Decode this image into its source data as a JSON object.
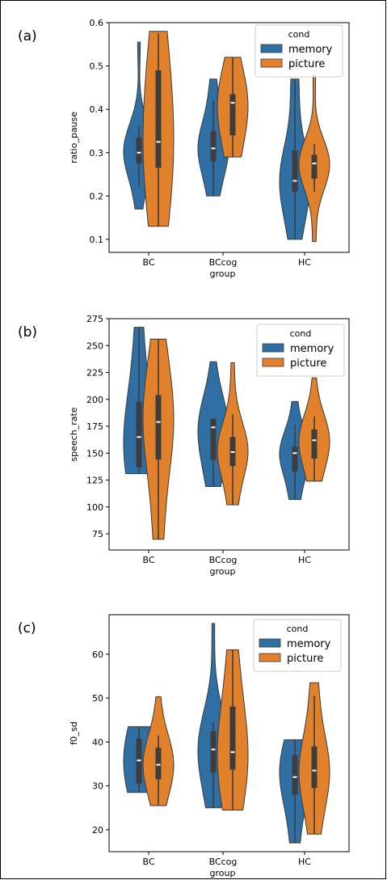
{
  "chart_data": [
    {
      "type": "violin",
      "panel_label": "(a)",
      "xlabel": "group",
      "ylabel": "ratio_pause",
      "categories": [
        "BC",
        "BCcog",
        "HC"
      ],
      "yticks": [
        0.1,
        0.2,
        0.3,
        0.4,
        0.5,
        0.6
      ],
      "ylim": [
        0.07,
        0.6
      ],
      "legend": {
        "title": "cond",
        "placement": "top-right",
        "entries": [
          "memory",
          "picture"
        ]
      },
      "series": [
        {
          "name": "memory",
          "color": "#2f6fa3",
          "groups": [
            {
              "min": 0.17,
              "q1": 0.275,
              "median": 0.3,
              "q3": 0.335,
              "whisker_low": 0.22,
              "whisker_high": 0.36,
              "max": 0.555
            },
            {
              "min": 0.2,
              "q1": 0.28,
              "median": 0.31,
              "q3": 0.35,
              "whisker_low": 0.2,
              "whisker_high": 0.42,
              "max": 0.47
            },
            {
              "min": 0.1,
              "q1": 0.21,
              "median": 0.235,
              "q3": 0.305,
              "whisker_low": 0.1,
              "whisker_high": 0.47,
              "max": 0.47
            }
          ]
        },
        {
          "name": "picture",
          "color": "#e1812c",
          "groups": [
            {
              "min": 0.13,
              "q1": 0.265,
              "median": 0.325,
              "q3": 0.49,
              "whisker_low": 0.13,
              "whisker_high": 0.575,
              "max": 0.58
            },
            {
              "min": 0.29,
              "q1": 0.34,
              "median": 0.415,
              "q3": 0.435,
              "whisker_low": 0.29,
              "whisker_high": 0.52,
              "max": 0.52
            },
            {
              "min": 0.095,
              "q1": 0.24,
              "median": 0.275,
              "q3": 0.295,
              "whisker_low": 0.21,
              "whisker_high": 0.32,
              "max": 0.48
            }
          ]
        }
      ]
    },
    {
      "type": "violin",
      "panel_label": "(b)",
      "xlabel": "group",
      "ylabel": "speech_rate",
      "categories": [
        "BC",
        "BCcog",
        "HC"
      ],
      "yticks": [
        75,
        100,
        125,
        150,
        175,
        200,
        225,
        250,
        275
      ],
      "ylim": [
        60,
        275
      ],
      "legend": {
        "title": "cond",
        "placement": "top-right",
        "entries": [
          "memory",
          "picture"
        ]
      },
      "series": [
        {
          "name": "memory",
          "color": "#2f6fa3",
          "groups": [
            {
              "min": 131,
              "q1": 137,
              "median": 165,
              "q3": 198,
              "whisker_low": 131,
              "whisker_high": 267,
              "max": 267
            },
            {
              "min": 119,
              "q1": 144,
              "median": 174,
              "q3": 182,
              "whisker_low": 119,
              "whisker_high": 182,
              "max": 235
            },
            {
              "min": 107,
              "q1": 133,
              "median": 150,
              "q3": 156,
              "whisker_low": 107,
              "whisker_high": 176,
              "max": 198
            }
          ]
        },
        {
          "name": "picture",
          "color": "#e1812c",
          "groups": [
            {
              "min": 70,
              "q1": 144,
              "median": 179,
              "q3": 204,
              "whisker_low": 70,
              "whisker_high": 256,
              "max": 256
            },
            {
              "min": 102,
              "q1": 138,
              "median": 151,
              "q3": 165,
              "whisker_low": 102,
              "whisker_high": 186,
              "max": 234
            },
            {
              "min": 124,
              "q1": 145,
              "median": 162,
              "q3": 172,
              "whisker_low": 124,
              "whisker_high": 184,
              "max": 220
            }
          ]
        }
      ]
    },
    {
      "type": "violin",
      "panel_label": "(c)",
      "xlabel": "group",
      "ylabel": "f0_sd",
      "categories": [
        "BC",
        "BCcog",
        "HC"
      ],
      "yticks": [
        20,
        30,
        40,
        50,
        60
      ],
      "ylim": [
        15,
        69
      ],
      "legend": {
        "title": "cond",
        "placement": "top-right",
        "entries": [
          "memory",
          "picture"
        ]
      },
      "series": [
        {
          "name": "memory",
          "color": "#2f6fa3",
          "groups": [
            {
              "min": 28.5,
              "q1": 30.5,
              "median": 35.8,
              "q3": 40.8,
              "whisker_low": 28.5,
              "whisker_high": 43.5,
              "max": 43.5
            },
            {
              "min": 25,
              "q1": 33,
              "median": 38.3,
              "q3": 42.5,
              "whisker_low": 25,
              "whisker_high": 44.5,
              "max": 67
            },
            {
              "min": 17,
              "q1": 28,
              "median": 32,
              "q3": 37,
              "whisker_low": 17,
              "whisker_high": 40.5,
              "max": 40.5
            }
          ]
        },
        {
          "name": "picture",
          "color": "#e1812c",
          "groups": [
            {
              "min": 25.5,
              "q1": 31.5,
              "median": 34.8,
              "q3": 38.7,
              "whisker_low": 25.5,
              "whisker_high": 41.5,
              "max": 50.3
            },
            {
              "min": 24.5,
              "q1": 33.7,
              "median": 37.7,
              "q3": 48.1,
              "whisker_low": 24.5,
              "whisker_high": 61,
              "max": 61
            },
            {
              "min": 19,
              "q1": 29.5,
              "median": 33.5,
              "q3": 39,
              "whisker_low": 19,
              "whisker_high": 50.5,
              "max": 53.5
            }
          ]
        }
      ]
    }
  ]
}
